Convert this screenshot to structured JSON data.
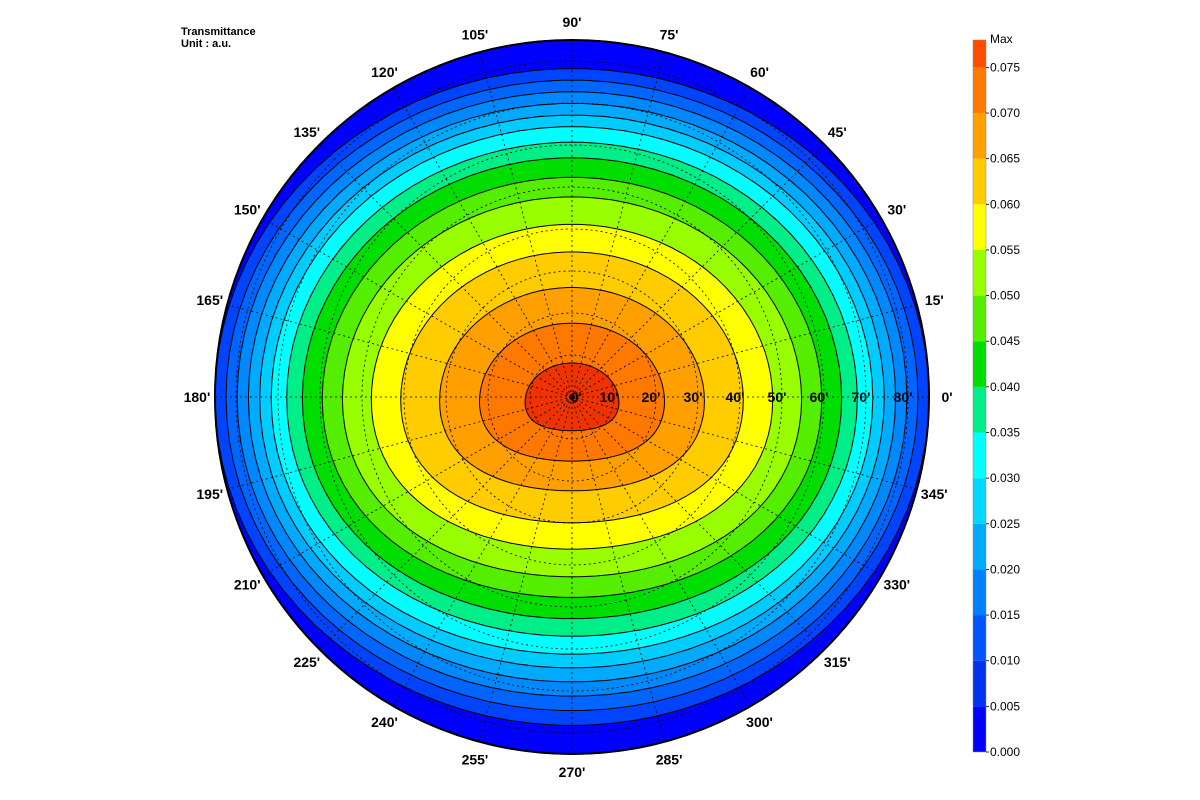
{
  "chart_data": {
    "type": "heatmap",
    "subtype": "polar-contour",
    "title": "Transmittance",
    "unit_label": "Unit : a.u.",
    "grid": true,
    "legend": "right",
    "angle_labels": [
      "0'",
      "15'",
      "30'",
      "45'",
      "60'",
      "75'",
      "90'",
      "105'",
      "120'",
      "135'",
      "150'",
      "165'",
      "180'",
      "195'",
      "210'",
      "225'",
      "240'",
      "255'",
      "270'",
      "285'",
      "300'",
      "315'",
      "330'",
      "345'"
    ],
    "angles_deg": [
      0,
      15,
      30,
      45,
      60,
      75,
      90,
      105,
      120,
      135,
      150,
      165,
      180,
      195,
      210,
      225,
      240,
      255,
      270,
      285,
      300,
      315,
      330,
      345
    ],
    "radial_labels": [
      "0'",
      "10'",
      "20'",
      "30'",
      "40'",
      "50'",
      "60'",
      "70'",
      "80'"
    ],
    "radial_values": [
      0,
      10,
      20,
      30,
      40,
      50,
      60,
      70,
      80
    ],
    "r_max": 85,
    "colorbar": {
      "max_label": "Max",
      "tick_labels": [
        "0.075",
        "0.070",
        "0.065",
        "0.060",
        "0.055",
        "0.050",
        "0.045",
        "0.040",
        "0.035",
        "0.030",
        "0.025",
        "0.020",
        "0.015",
        "0.010",
        "0.005",
        "0.000"
      ],
      "levels": [
        0,
        0.005,
        0.01,
        0.015,
        0.02,
        0.025,
        0.03,
        0.035,
        0.04,
        0.045,
        0.05,
        0.055,
        0.06,
        0.065,
        0.07,
        0.075,
        0.078
      ],
      "colors": [
        "#0000ff",
        "#0033ee",
        "#0055ff",
        "#0080ff",
        "#00aaff",
        "#00d8ff",
        "#00ffff",
        "#00ee88",
        "#00dd00",
        "#55ee00",
        "#99ff00",
        "#ffff00",
        "#ffcc00",
        "#ffa000",
        "#ff7800",
        "#ff4d00",
        "#ee2200"
      ]
    },
    "contour_levels": [
      0.0,
      0.005,
      0.01,
      0.015,
      0.02,
      0.025,
      0.03,
      0.035,
      0.04,
      0.045,
      0.05,
      0.055,
      0.06,
      0.065,
      0.07,
      0.075
    ],
    "band_radii": [
      85,
      82,
      79,
      76,
      73,
      70,
      66,
      62,
      57,
      52,
      45,
      38,
      29,
      20,
      10
    ],
    "band_colors": [
      "#0000ff",
      "#0044ff",
      "#0066ff",
      "#0088ff",
      "#00aaff",
      "#00ccff",
      "#00ffff",
      "#00ee88",
      "#00dd00",
      "#55ee00",
      "#99ff00",
      "#ffff00",
      "#ffcc00",
      "#ffa000",
      "#ff7800",
      "#ee3300"
    ]
  }
}
